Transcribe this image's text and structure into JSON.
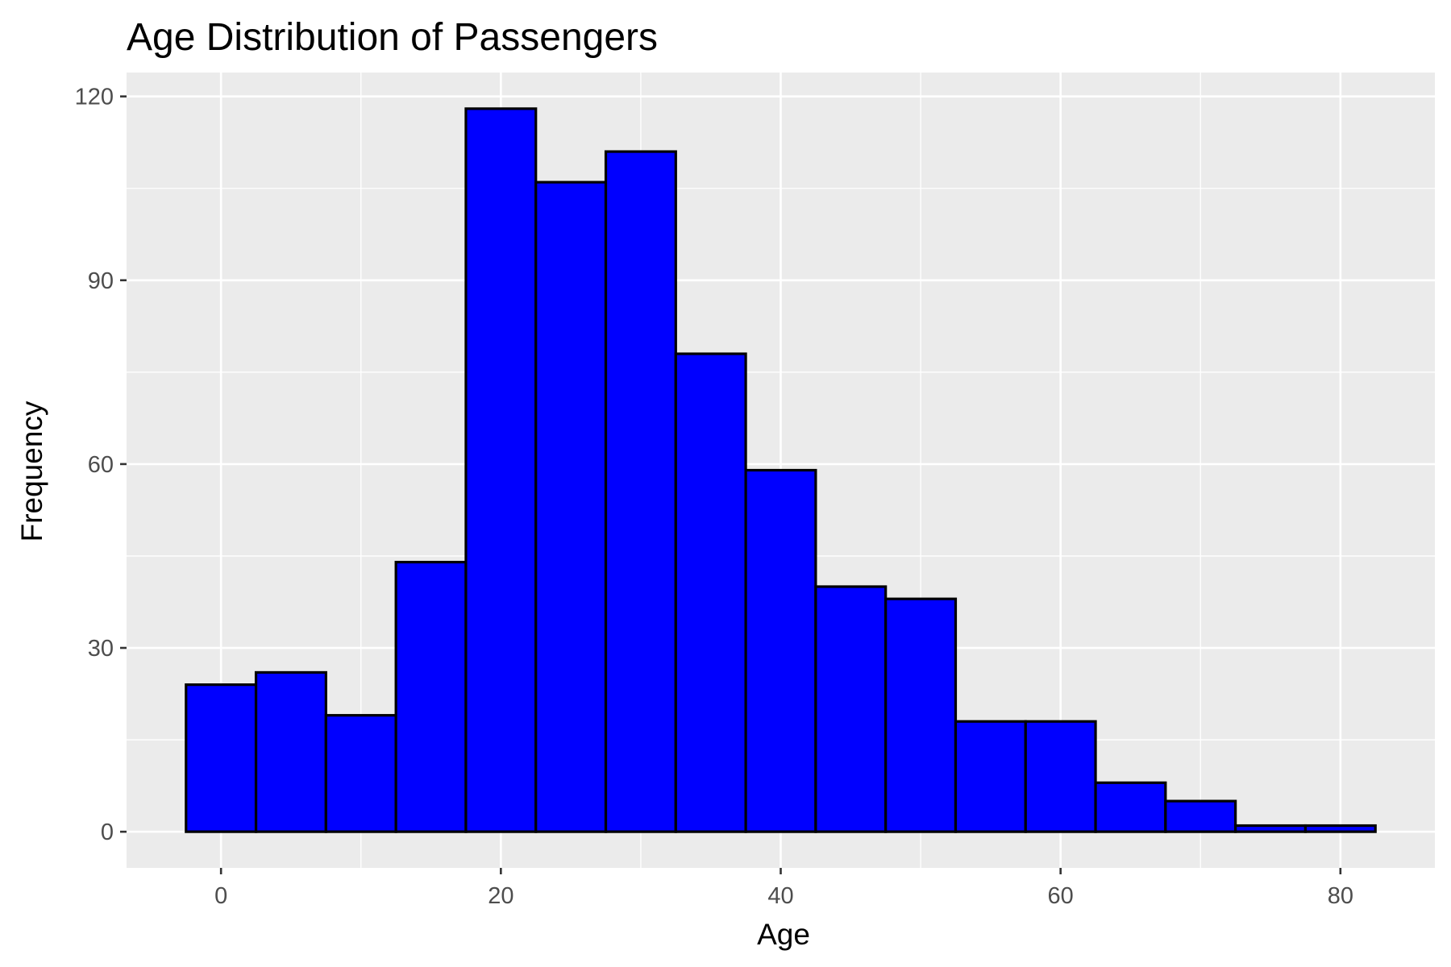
{
  "chart_data": {
    "type": "bar",
    "title": "Age Distribution of Passengers",
    "xlabel": "Age",
    "ylabel": "Frequency",
    "bin_width": 5,
    "bins": [
      {
        "x_start": -2.5,
        "x_end": 2.5,
        "value": 24
      },
      {
        "x_start": 2.5,
        "x_end": 7.5,
        "value": 26
      },
      {
        "x_start": 7.5,
        "x_end": 12.5,
        "value": 19
      },
      {
        "x_start": 12.5,
        "x_end": 17.5,
        "value": 44
      },
      {
        "x_start": 17.5,
        "x_end": 22.5,
        "value": 118
      },
      {
        "x_start": 22.5,
        "x_end": 27.5,
        "value": 106
      },
      {
        "x_start": 27.5,
        "x_end": 32.5,
        "value": 111
      },
      {
        "x_start": 32.5,
        "x_end": 37.5,
        "value": 78
      },
      {
        "x_start": 37.5,
        "x_end": 42.5,
        "value": 59
      },
      {
        "x_start": 42.5,
        "x_end": 47.5,
        "value": 40
      },
      {
        "x_start": 47.5,
        "x_end": 52.5,
        "value": 38
      },
      {
        "x_start": 52.5,
        "x_end": 57.5,
        "value": 18
      },
      {
        "x_start": 57.5,
        "x_end": 62.5,
        "value": 18
      },
      {
        "x_start": 62.5,
        "x_end": 67.5,
        "value": 8
      },
      {
        "x_start": 67.5,
        "x_end": 72.5,
        "value": 5
      },
      {
        "x_start": 72.5,
        "x_end": 77.5,
        "value": 1
      },
      {
        "x_start": 77.5,
        "x_end": 82.5,
        "value": 1
      }
    ],
    "xlim": [
      -6.75,
      86.75
    ],
    "ylim": [
      -5.9,
      123.9
    ],
    "x_ticks": [
      0,
      20,
      40,
      60,
      80
    ],
    "x_tick_labels": [
      "0",
      "20",
      "40",
      "60",
      "80"
    ],
    "y_ticks": [
      0,
      30,
      60,
      90,
      120
    ],
    "y_tick_labels": [
      "0",
      "30",
      "60",
      "90",
      "120"
    ],
    "grid": true,
    "bar_fill": "#0000ff",
    "bar_outline": "#000000",
    "panel_background": "#ebebeb",
    "grid_color": "#ffffff"
  }
}
